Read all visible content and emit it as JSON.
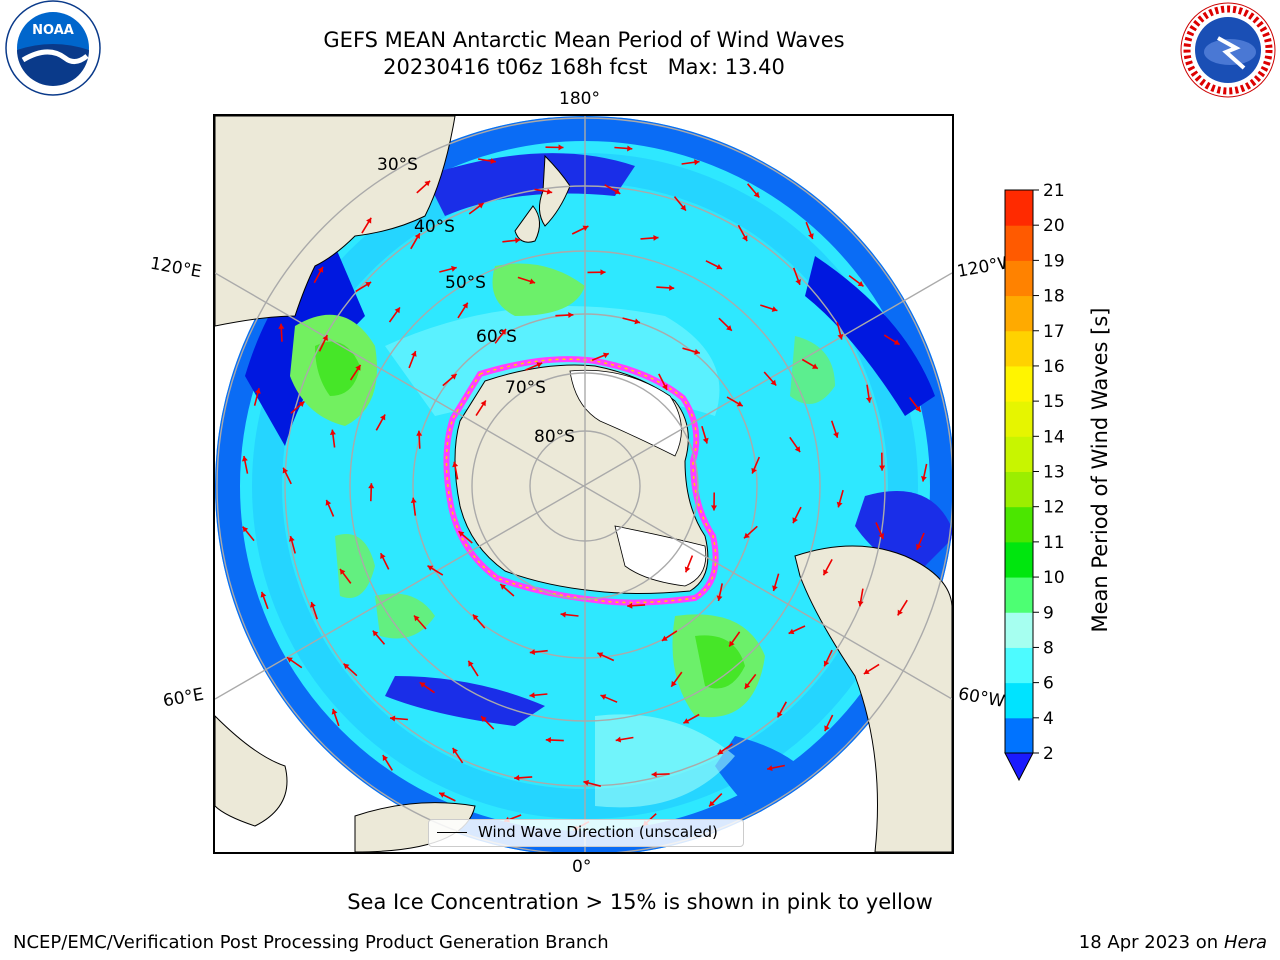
{
  "header": {
    "title_line1": "GEFS MEAN Antarctic Mean Period of Wind Waves",
    "title_line2": "20230416 t06z 168h fcst   Max: 13.40"
  },
  "map": {
    "longitude_labels": {
      "top": "180°",
      "bottom": "0°",
      "left_upper": "120°E",
      "left_lower": "60°E",
      "right_upper": "120°W",
      "right_lower": "60°W"
    },
    "latitude_labels": [
      "30°S",
      "40°S",
      "50°S",
      "60°S",
      "70°S",
      "80°S"
    ],
    "legend": "Wind Wave Direction (unscaled)",
    "colors": {
      "land": "#ece9d8",
      "ocean_low": "#0000ee",
      "ocean_mid": "#1fe6ff",
      "ocean_high": "#7cfc7c",
      "ice_edge": "#ff40ff",
      "arrows": "#ee0000"
    }
  },
  "colorbar": {
    "label": "Mean Period of Wind Waves [s]",
    "ticks": [
      "2",
      "4",
      "6",
      "8",
      "9",
      "10",
      "11",
      "12",
      "13",
      "14",
      "15",
      "16",
      "17",
      "18",
      "19",
      "20",
      "21"
    ],
    "colors": [
      "#0073ff",
      "#00e3ff",
      "#4dfbff",
      "#a6fff0",
      "#4dff73",
      "#00e60e",
      "#4be600",
      "#9bee00",
      "#c8f500",
      "#e6f500",
      "#fff500",
      "#ffd200",
      "#ffaa00",
      "#ff8200",
      "#ff5a00",
      "#ff2a00"
    ],
    "extend_color": "#1a1aff"
  },
  "footer": {
    "note": "Sea Ice Concentration > 15% is shown in pink to yellow",
    "credit_left": "NCEP/EMC/Verification Post Processing Product Generation Branch",
    "credit_right_prefix": "18 Apr 2023 on ",
    "credit_right_machine": "Hera"
  },
  "logos": {
    "left": "NOAA",
    "right": "NATIONAL WEATHER SERVICE"
  }
}
